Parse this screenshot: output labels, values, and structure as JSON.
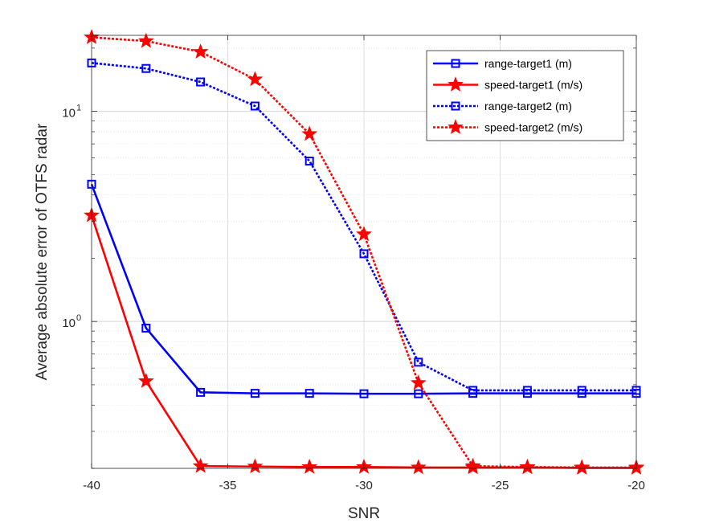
{
  "chart_data": {
    "type": "line",
    "title": "",
    "xlabel": "SNR",
    "ylabel": "Average absolute error of OTFS radar",
    "xlim": [
      -40,
      -20
    ],
    "ylim": [
      0.2,
      23
    ],
    "yscale": "log",
    "x_ticks": [
      -40,
      -35,
      -30,
      -25,
      -20
    ],
    "x_tick_labels": [
      "-40",
      "-35",
      "-30",
      "-25",
      "-20"
    ],
    "y_ticks": [
      1,
      10
    ],
    "y_tick_labels": [
      {
        "base": "10",
        "exp": "0"
      },
      {
        "base": "10",
        "exp": "1"
      }
    ],
    "grid": true,
    "minor_grid": true,
    "legend_position": "top-right",
    "x": [
      -40,
      -38,
      -36,
      -34,
      -32,
      -30,
      -28,
      -26,
      -24,
      -22,
      -20
    ],
    "series": [
      {
        "name": "range-target1 (m)",
        "color": "#0000FF",
        "line_style": "solid",
        "marker": "square",
        "values": [
          4.5,
          0.93,
          0.46,
          0.455,
          0.455,
          0.453,
          0.453,
          0.455,
          0.455,
          0.455,
          0.455
        ]
      },
      {
        "name": "speed-target1 (m/s)",
        "color": "#FF0000",
        "line_style": "solid",
        "marker": "star",
        "values": [
          3.2,
          0.52,
          0.205,
          0.204,
          0.203,
          0.203,
          0.202,
          0.202,
          0.202,
          0.201,
          0.201
        ]
      },
      {
        "name": "range-target2 (m)",
        "color": "#0000FF",
        "line_style": "dotted",
        "marker": "square",
        "values": [
          17.0,
          16.0,
          13.8,
          10.6,
          5.8,
          2.1,
          0.64,
          0.47,
          0.47,
          0.47,
          0.47
        ]
      },
      {
        "name": "speed-target2 (m/s)",
        "color": "#FF0000",
        "line_style": "dotted",
        "marker": "star",
        "values": [
          22.5,
          21.6,
          19.2,
          14.2,
          7.8,
          2.6,
          0.51,
          0.205,
          0.203,
          0.202,
          0.202
        ]
      }
    ]
  }
}
